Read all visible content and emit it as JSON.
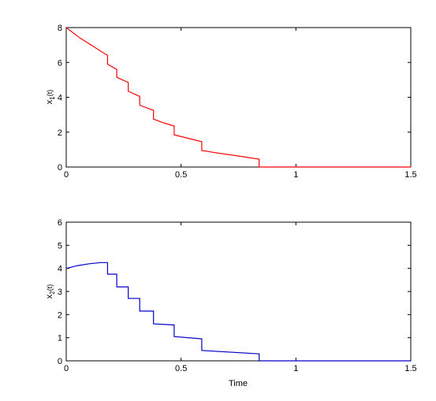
{
  "chart_data": [
    {
      "type": "line",
      "xlabel": "",
      "ylabel": "x_1(t)",
      "xlim": [
        0,
        1.5
      ],
      "ylim": [
        0,
        8
      ],
      "xticks": [
        0,
        0.5,
        1,
        1.5
      ],
      "xtick_labels": [
        "0",
        "0.5",
        "1",
        "1.5"
      ],
      "yticks": [
        0,
        2,
        4,
        6,
        8
      ],
      "ytick_labels": [
        "0",
        "2",
        "4",
        "6",
        "8"
      ],
      "grid": false,
      "color": "#ff0000",
      "segments": [
        {
          "t": [
            0.0,
            0.06,
            0.12,
            0.18
          ],
          "y": [
            8.0,
            7.4,
            6.9,
            6.4
          ]
        },
        {
          "t": [
            0.18,
            0.22
          ],
          "y": [
            5.9,
            5.6
          ]
        },
        {
          "t": [
            0.22,
            0.27
          ],
          "y": [
            5.15,
            4.85
          ]
        },
        {
          "t": [
            0.27,
            0.32
          ],
          "y": [
            4.35,
            4.05
          ]
        },
        {
          "t": [
            0.32,
            0.38
          ],
          "y": [
            3.55,
            3.25
          ]
        },
        {
          "t": [
            0.38,
            0.42,
            0.47
          ],
          "y": [
            2.75,
            2.55,
            2.35
          ]
        },
        {
          "t": [
            0.47,
            0.53,
            0.59
          ],
          "y": [
            1.85,
            1.65,
            1.45
          ]
        },
        {
          "t": [
            0.59,
            0.66,
            0.74,
            0.84
          ],
          "y": [
            0.95,
            0.8,
            0.65,
            0.45
          ]
        },
        {
          "t": [
            0.84,
            1.5
          ],
          "y": [
            0.0,
            0.0
          ]
        }
      ]
    },
    {
      "type": "line",
      "xlabel": "Time",
      "ylabel": "x_2(t)",
      "xlim": [
        0,
        1.5
      ],
      "ylim": [
        0,
        6
      ],
      "xticks": [
        0,
        0.5,
        1,
        1.5
      ],
      "xtick_labels": [
        "0",
        "0.5",
        "1",
        "1.5"
      ],
      "yticks": [
        0,
        1,
        2,
        3,
        4,
        5,
        6
      ],
      "ytick_labels": [
        "0",
        "1",
        "2",
        "3",
        "4",
        "5",
        "6"
      ],
      "grid": false,
      "color": "#0000cc",
      "segments": [
        {
          "t": [
            0.0,
            0.05,
            0.1,
            0.15,
            0.18
          ],
          "y": [
            4.0,
            4.12,
            4.2,
            4.25,
            4.25
          ]
        },
        {
          "t": [
            0.18,
            0.22
          ],
          "y": [
            3.75,
            3.75
          ]
        },
        {
          "t": [
            0.22,
            0.27
          ],
          "y": [
            3.2,
            3.2
          ]
        },
        {
          "t": [
            0.27,
            0.32
          ],
          "y": [
            2.7,
            2.7
          ]
        },
        {
          "t": [
            0.32,
            0.38
          ],
          "y": [
            2.15,
            2.15
          ]
        },
        {
          "t": [
            0.38,
            0.47
          ],
          "y": [
            1.6,
            1.55
          ]
        },
        {
          "t": [
            0.47,
            0.59
          ],
          "y": [
            1.05,
            0.95
          ]
        },
        {
          "t": [
            0.59,
            0.84
          ],
          "y": [
            0.45,
            0.3
          ]
        },
        {
          "t": [
            0.84,
            1.5
          ],
          "y": [
            0.0,
            0.0
          ]
        }
      ]
    }
  ]
}
